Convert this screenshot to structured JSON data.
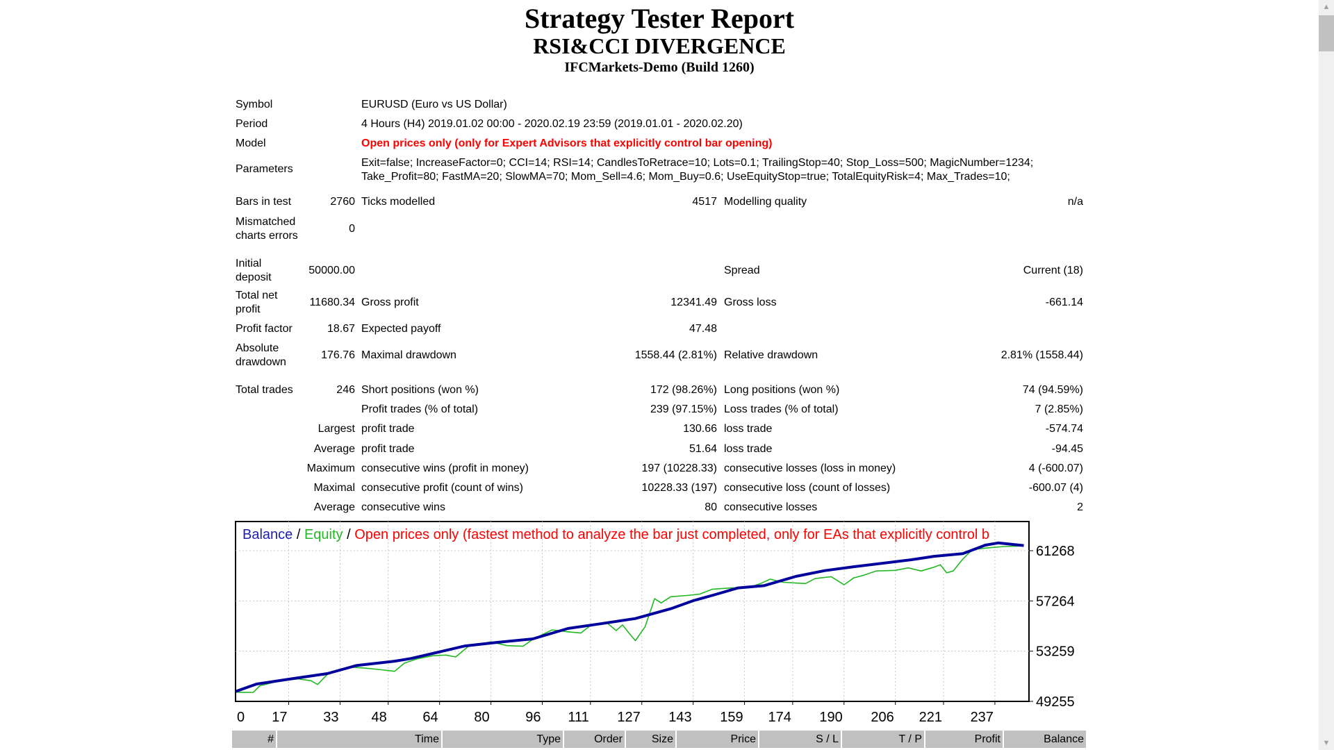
{
  "report": {
    "title": "Strategy Tester Report",
    "ea_name": "RSI&CCI DIVERGENCE",
    "server": "IFCMarkets-Demo (Build 1260)"
  },
  "summary": {
    "symbol": {
      "label": "Symbol",
      "value": "EURUSD (Euro vs US Dollar)"
    },
    "period": {
      "label": "Period",
      "value": "4 Hours (H4) 2019.01.02 00:00 - 2020.02.19 23:59 (2019.01.01 - 2020.02.20)"
    },
    "model": {
      "label": "Model",
      "value": "Open prices only (only for Expert Advisors that explicitly control bar opening)"
    },
    "parameters": {
      "label": "Parameters",
      "line1": "Exit=false; IncreaseFactor=0; CCI=14; RSI=14; CandlesToRetrace=10; Lots=0.1; TrailingStop=40; Stop_Loss=500; MagicNumber=1234;",
      "line2": "Take_Profit=80; FastMA=20; SlowMA=70; Mom_Sell=4.6; Mom_Buy=0.6; UseEquityStop=true; TotalEquityRisk=4; Max_Trades=10;"
    },
    "bars": {
      "label": "Bars in test",
      "value": "2760",
      "ticks_label": "Ticks modelled",
      "ticks_value": "4517",
      "quality_label": "Modelling quality",
      "quality_value": "n/a"
    },
    "mismatched": {
      "label1": "Mismatched",
      "label2": "charts errors",
      "value": "0"
    },
    "deposit": {
      "label1": "Initial",
      "label2": "deposit",
      "value": "50000.00",
      "spread_label": "Spread",
      "spread_value": "Current (18)"
    },
    "net": {
      "label1": "Total net",
      "label2": "profit",
      "value": "11680.34",
      "gp_label": "Gross profit",
      "gp_value": "12341.49",
      "gl_label": "Gross loss",
      "gl_value": "-661.14"
    },
    "pf": {
      "label": "Profit factor",
      "value": "18.67",
      "ep_label": "Expected payoff",
      "ep_value": "47.48"
    },
    "dd": {
      "label1": "Absolute",
      "label2": "drawdown",
      "value": "176.76",
      "md_label": "Maximal drawdown",
      "md_value": "1558.44 (2.81%)",
      "rd_label": "Relative drawdown",
      "rd_value": "2.81% (1558.44)"
    },
    "trades": {
      "label": "Total trades",
      "value": "246",
      "short_label": "Short positions (won %)",
      "short_value": "172 (98.26%)",
      "long_label": "Long positions (won %)",
      "long_value": "74 (94.59%)"
    },
    "ptrades": {
      "label": "Profit trades (% of total)",
      "value": "239 (97.15%)",
      "lt_label": "Loss trades (% of total)",
      "lt_value": "7 (2.85%)"
    },
    "largest": {
      "label": "Largest",
      "p_label": "profit trade",
      "p_value": "130.66",
      "l_label": "loss trade",
      "l_value": "-574.74"
    },
    "average": {
      "label": "Average",
      "p_label": "profit trade",
      "p_value": "51.64",
      "l_label": "loss trade",
      "l_value": "-94.45"
    },
    "maximum": {
      "label": "Maximum",
      "p_label": "consecutive wins (profit in money)",
      "p_value": "197 (10228.33)",
      "l_label": "consecutive losses (loss in money)",
      "l_value": "4 (-600.07)"
    },
    "maximal": {
      "label": "Maximal",
      "p_label": "consecutive profit (count of wins)",
      "p_value": "10228.33 (197)",
      "l_label": "consecutive loss (count of losses)",
      "l_value": "-600.07 (4)"
    },
    "avgcons": {
      "label": "Average",
      "p_label": "consecutive wins",
      "p_value": "80",
      "l_label": "consecutive losses",
      "l_value": "2"
    }
  },
  "chart_data": {
    "type": "line",
    "legend": {
      "balance": "Balance",
      "sep": " / ",
      "equity": "Equity",
      "model": "Open prices only (fastest method to analyze the bar just completed, only for EAs that explicitly control b"
    },
    "colors": {
      "balance": "#00009c",
      "equity": "#22b822",
      "model": "#ff0000",
      "grid": "#c8c8c8"
    },
    "grid": true,
    "xlim": [
      0,
      248
    ],
    "ylim": [
      49255,
      63700
    ],
    "x_ticks": [
      0,
      17,
      33,
      48,
      64,
      80,
      96,
      111,
      127,
      143,
      159,
      174,
      190,
      206,
      221,
      237
    ],
    "y_ticks": [
      61268,
      57264,
      53259,
      49255
    ],
    "series": [
      {
        "name": "Balance",
        "points": [
          [
            0,
            50000
          ],
          [
            7,
            50640
          ],
          [
            18,
            51060
          ],
          [
            29,
            51470
          ],
          [
            38,
            52110
          ],
          [
            50,
            52460
          ],
          [
            55,
            52670
          ],
          [
            72,
            53680
          ],
          [
            82,
            53960
          ],
          [
            93,
            54240
          ],
          [
            104,
            55070
          ],
          [
            114,
            55440
          ],
          [
            125,
            55860
          ],
          [
            136,
            56640
          ],
          [
            143,
            57280
          ],
          [
            150,
            57780
          ],
          [
            157,
            58300
          ],
          [
            165,
            58480
          ],
          [
            175,
            59220
          ],
          [
            184,
            59680
          ],
          [
            193,
            59990
          ],
          [
            211,
            60550
          ],
          [
            218,
            60820
          ],
          [
            227,
            61030
          ],
          [
            234,
            61710
          ],
          [
            238,
            61890
          ],
          [
            246,
            61680
          ]
        ]
      },
      {
        "name": "Equity",
        "points": [
          [
            0,
            50000
          ],
          [
            3,
            49970
          ],
          [
            6,
            49980
          ],
          [
            8,
            50500
          ],
          [
            12,
            50750
          ],
          [
            16,
            50950
          ],
          [
            20,
            51050
          ],
          [
            24,
            50900
          ],
          [
            26,
            50600
          ],
          [
            29,
            51400
          ],
          [
            36,
            52000
          ],
          [
            41,
            51900
          ],
          [
            45,
            51800
          ],
          [
            50,
            51650
          ],
          [
            53,
            52300
          ],
          [
            57,
            52650
          ],
          [
            62,
            52900
          ],
          [
            66,
            52950
          ],
          [
            69,
            52800
          ],
          [
            73,
            53650
          ],
          [
            80,
            54000
          ],
          [
            85,
            53700
          ],
          [
            90,
            53650
          ],
          [
            93,
            54200
          ],
          [
            99,
            54950
          ],
          [
            104,
            54800
          ],
          [
            108,
            54700
          ],
          [
            111,
            55300
          ],
          [
            116,
            55550
          ],
          [
            119,
            54900
          ],
          [
            121,
            55350
          ],
          [
            123,
            54700
          ],
          [
            125,
            54100
          ],
          [
            128,
            55200
          ],
          [
            131,
            57450
          ],
          [
            133,
            57100
          ],
          [
            136,
            57600
          ],
          [
            141,
            57700
          ],
          [
            145,
            57800
          ],
          [
            149,
            58200
          ],
          [
            155,
            58300
          ],
          [
            160,
            58300
          ],
          [
            164,
            58650
          ],
          [
            167,
            59000
          ],
          [
            171,
            58750
          ],
          [
            178,
            58650
          ],
          [
            181,
            59050
          ],
          [
            186,
            59200
          ],
          [
            190,
            58550
          ],
          [
            193,
            59100
          ],
          [
            196,
            59300
          ],
          [
            200,
            59650
          ],
          [
            206,
            59700
          ],
          [
            210,
            59900
          ],
          [
            214,
            59650
          ],
          [
            218,
            59950
          ],
          [
            220,
            60150
          ],
          [
            222,
            59500
          ],
          [
            224,
            59650
          ],
          [
            227,
            60600
          ],
          [
            230,
            61350
          ],
          [
            235,
            61500
          ],
          [
            240,
            61600
          ],
          [
            246,
            61650
          ]
        ]
      }
    ]
  },
  "orders_header": [
    "#",
    "Time",
    "Type",
    "Order",
    "Size",
    "Price",
    "S / L",
    "T / P",
    "Profit",
    "Balance"
  ],
  "scrollbar": {
    "up_icon": "chevron-up-icon",
    "down_icon": "chevron-down-icon",
    "position": 0
  }
}
